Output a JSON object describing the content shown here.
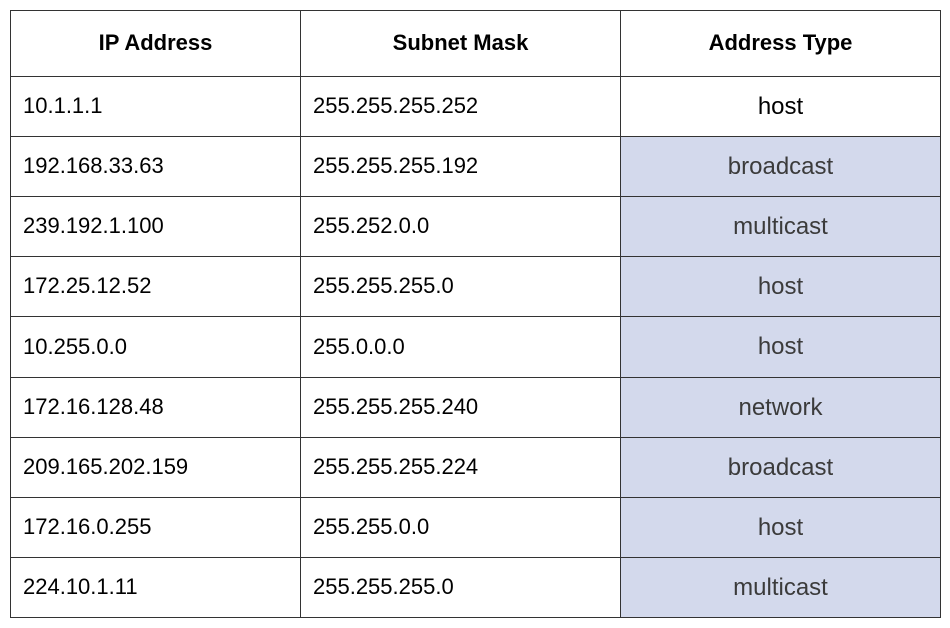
{
  "table": {
    "columns": [
      {
        "label": "IP Address"
      },
      {
        "label": "Subnet Mask"
      },
      {
        "label": "Address Type"
      }
    ],
    "rows": [
      {
        "ip": "10.1.1.1",
        "mask": "255.255.255.252",
        "type": "host",
        "type_filled": false
      },
      {
        "ip": "192.168.33.63",
        "mask": "255.255.255.192",
        "type": "broadcast",
        "type_filled": true
      },
      {
        "ip": "239.192.1.100",
        "mask": "255.252.0.0",
        "type": "multicast",
        "type_filled": true
      },
      {
        "ip": "172.25.12.52",
        "mask": "255.255.255.0",
        "type": "host",
        "type_filled": true
      },
      {
        "ip": "10.255.0.0",
        "mask": "255.0.0.0",
        "type": "host",
        "type_filled": true
      },
      {
        "ip": "172.16.128.48",
        "mask": "255.255.255.240",
        "type": "network",
        "type_filled": true
      },
      {
        "ip": "209.165.202.159",
        "mask": "255.255.255.224",
        "type": "broadcast",
        "type_filled": true
      },
      {
        "ip": "172.16.0.255",
        "mask": "255.255.0.0",
        "type": "host",
        "type_filled": true
      },
      {
        "ip": "224.10.1.11",
        "mask": "255.255.255.0",
        "type": "multicast",
        "type_filled": true
      }
    ],
    "colors": {
      "border": "#333333",
      "type_filled_bg": "#d3d9ec",
      "type_filled_text": "#3b3b3b",
      "plain_bg": "#ffffff",
      "plain_text": "#000000"
    }
  }
}
